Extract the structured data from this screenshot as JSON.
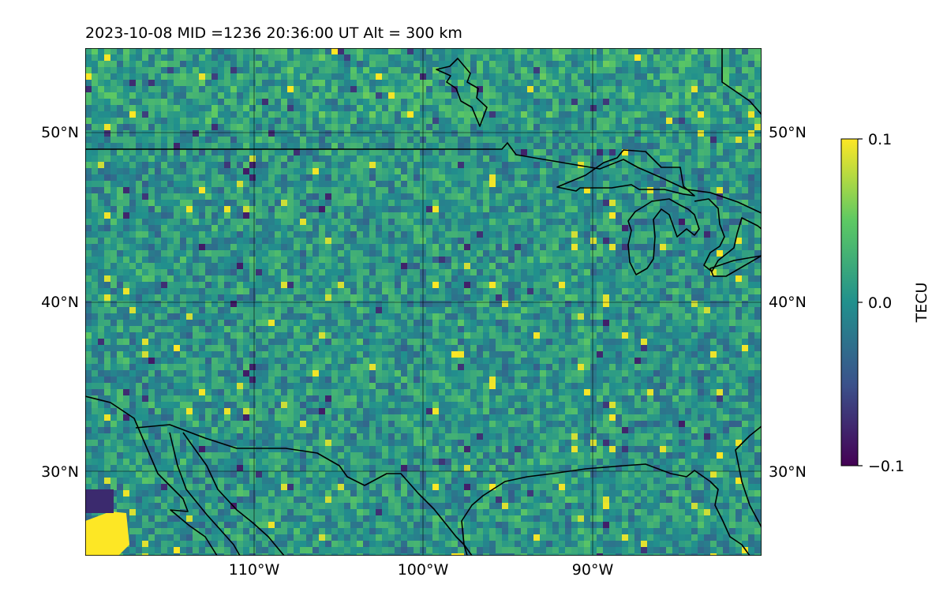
{
  "title": "2023-10-08  MID =1236    20:36:00  UT  Alt = 300 km",
  "map": {
    "lon_range": [
      -120,
      -80
    ],
    "lat_range": [
      25,
      55
    ],
    "grid": true,
    "gridlines_lon": [
      -110,
      -100,
      -90
    ],
    "gridlines_lat": [
      30,
      40,
      50
    ],
    "lon_ticks": [
      "110°W",
      "100°W",
      "90°W"
    ],
    "lat_ticks": [
      "30°N",
      "40°N",
      "50°N"
    ],
    "lat_ticks_right": [
      "30°N",
      "40°N",
      "50°N"
    ],
    "field_colormap": "viridis"
  },
  "colorbar": {
    "label": "TECU",
    "min": -0.1,
    "max": 0.1,
    "ticks": [
      "0.1",
      "0.0",
      "−0.1"
    ],
    "colors": [
      "#440154",
      "#3b528b",
      "#21908d",
      "#5dc963",
      "#fde725"
    ]
  }
}
